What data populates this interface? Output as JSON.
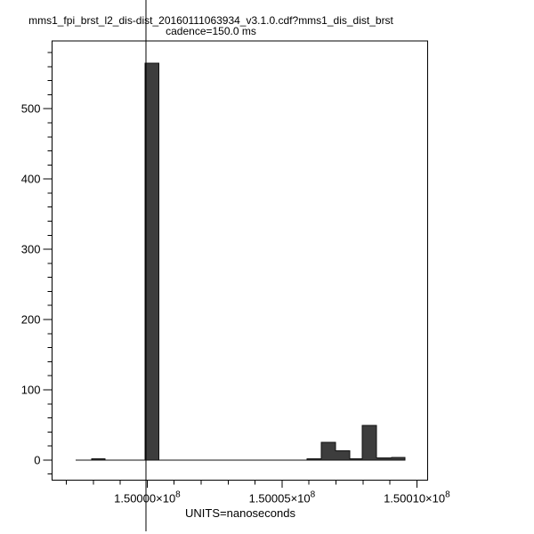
{
  "title": {
    "line1": "mms1_fpi_brst_l2_dis-dist_20160111063934_v3.1.0.cdf?mms1_dis_dist_brst",
    "line2": "cadence=150.0 ms"
  },
  "chart_data": {
    "type": "bar",
    "subtype": "histogram-step",
    "title": "mms1_fpi_brst_l2_dis-dist_20160111063934_v3.1.0.cdf?mms1_dis_dist_brst",
    "subtitle": "cadence=150.0 ms",
    "xlabel": "UNITS=nanoseconds",
    "ylabel": "",
    "grid": false,
    "legend": null,
    "xlim": [
      149996470,
      150010400
    ],
    "ylim": [
      -28.6,
      596.5
    ],
    "x_minor_step": 1000,
    "y_minor_step": 20,
    "x_major_ticks": [
      {
        "value": 150000000,
        "base": "1.50000×10",
        "exp": "8"
      },
      {
        "value": 150005000,
        "base": "1.50005×10",
        "exp": "8"
      },
      {
        "value": 150010000,
        "base": "1.50010×10",
        "exp": "8"
      }
    ],
    "y_major_ticks": [
      {
        "value": 0,
        "label": "0"
      },
      {
        "value": 100,
        "label": "100"
      },
      {
        "value": 200,
        "label": "200"
      },
      {
        "value": 300,
        "label": "300"
      },
      {
        "value": 400,
        "label": "400"
      },
      {
        "value": 500,
        "label": "500"
      }
    ],
    "bins": [
      {
        "start": 149997343,
        "end": 149997937,
        "count": 0
      },
      {
        "start": 149997937,
        "end": 149998432,
        "count": 2
      },
      {
        "start": 149998432,
        "end": 149999918,
        "count": 0
      },
      {
        "start": 149999918,
        "end": 150000429,
        "count": 565
      },
      {
        "start": 150000429,
        "end": 150005924,
        "count": 0
      },
      {
        "start": 150005924,
        "end": 150006452,
        "count": 2
      },
      {
        "start": 150006452,
        "end": 150006980,
        "count": 25
      },
      {
        "start": 150006980,
        "end": 150007508,
        "count": 13
      },
      {
        "start": 150007508,
        "end": 150007970,
        "count": 2
      },
      {
        "start": 150007970,
        "end": 150008498,
        "count": 49
      },
      {
        "start": 150008498,
        "end": 150009059,
        "count": 3
      },
      {
        "start": 150009059,
        "end": 150009554,
        "count": 4
      }
    ],
    "crosshair_x": 149999951,
    "colors": {
      "background": "#ffffff",
      "axis": "#000000",
      "bar_fill": "#3d3d3d",
      "bar_stroke": "#111111",
      "crosshair": "#000000",
      "text": "#000000"
    }
  }
}
